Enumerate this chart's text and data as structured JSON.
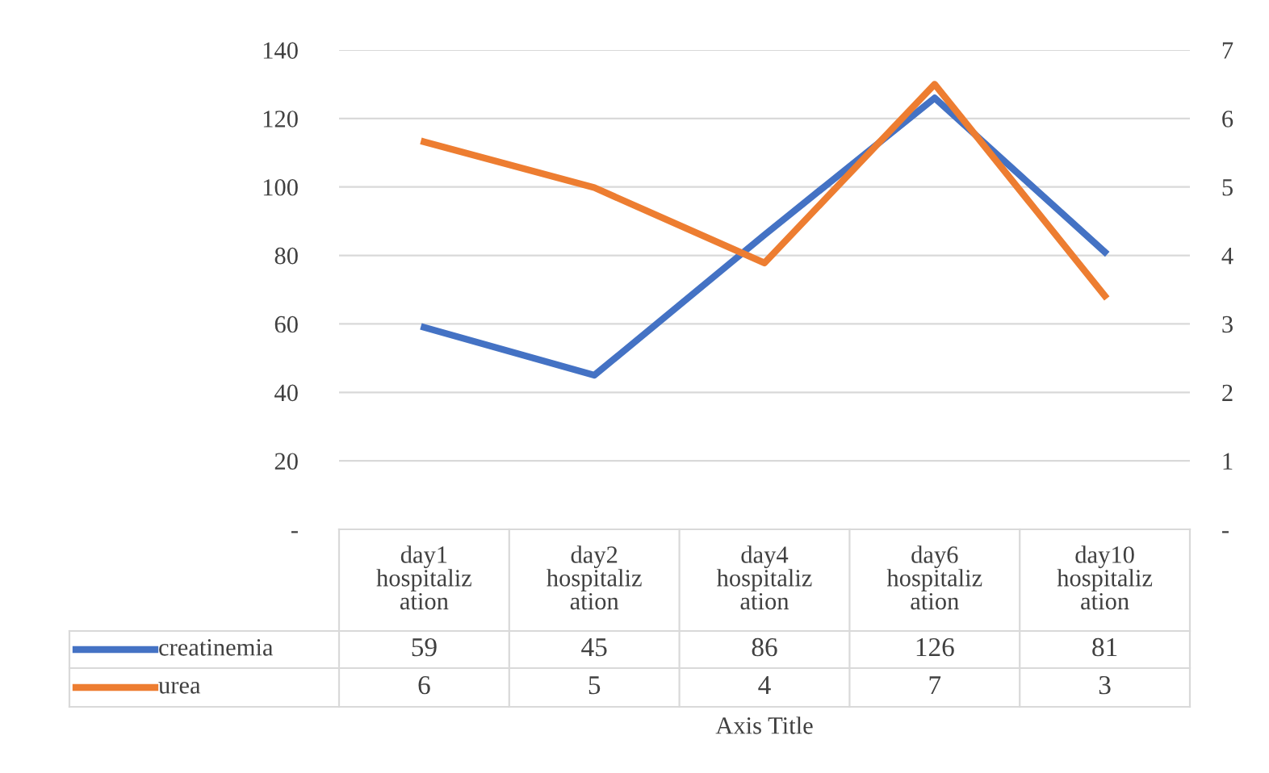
{
  "chart_data": {
    "type": "line",
    "xlabel": "Axis Title",
    "categories": [
      "day1 hospitalization",
      "day2 hospitalization",
      "day4 hospitalization",
      "day6 hospitalization",
      "day10 hospitalization"
    ],
    "series": [
      {
        "name": "creatinemia",
        "color": "#4472c4",
        "values": [
          59,
          45,
          86,
          126,
          81
        ],
        "value_labels": [
          "59",
          "45",
          "86",
          "126",
          "81"
        ]
      },
      {
        "name": "urea",
        "color": "#ed7d31",
        "axis": "y2",
        "values": [
          5.66,
          4.99,
          3.89,
          6.5,
          3.41
        ],
        "value_labels": [
          "6",
          "5",
          "4",
          "7",
          "3"
        ]
      }
    ],
    "ylim": [
      0,
      140
    ],
    "yticks": [
      {
        "value": 0,
        "label": "-"
      },
      20,
      40,
      60,
      80,
      100,
      120,
      140
    ],
    "y2lim": [
      0,
      7
    ],
    "y2ticks": [
      {
        "value": 0,
        "label": "-"
      },
      1,
      2,
      3,
      4,
      5,
      6,
      7
    ],
    "grid": "y",
    "legend": "bottom",
    "marker": "none",
    "line_style": "solid"
  }
}
